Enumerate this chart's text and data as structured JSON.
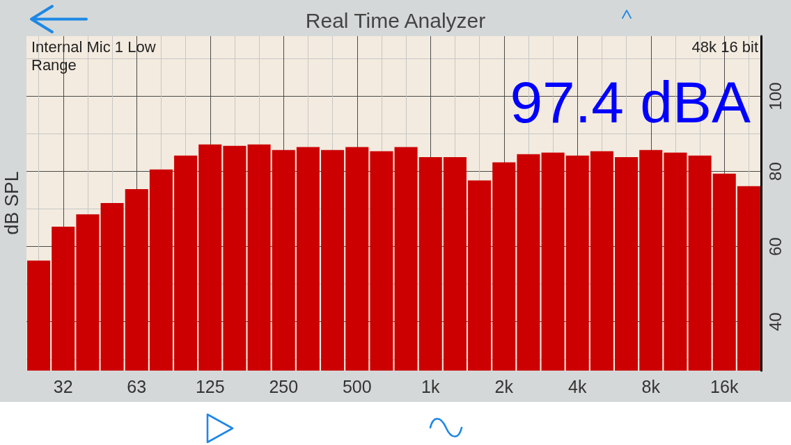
{
  "chart_data": {
    "type": "bar",
    "title": "Real Time Analyzer",
    "ylabel": "dB SPL",
    "annotations": [
      "Internal Mic 1 Low Range",
      "48k 16 bit",
      "97.4 dBA"
    ],
    "categories": [
      null,
      "32",
      null,
      null,
      "63",
      null,
      null,
      "125",
      null,
      null,
      "250",
      null,
      null,
      "500",
      null,
      null,
      "1k",
      null,
      null,
      "2k",
      null,
      null,
      "4k",
      null,
      null,
      "8k",
      null,
      null,
      "16k",
      null
    ],
    "values": [
      56.3,
      65.3,
      68.6,
      71.6,
      75.3,
      80.5,
      84.2,
      87.2,
      86.8,
      87.2,
      85.7,
      86.5,
      85.7,
      86.5,
      85.4,
      86.5,
      83.8,
      83.8,
      77.6,
      82.4,
      84.6,
      85.0,
      84.2,
      85.4,
      83.8,
      85.7,
      85.0,
      84.2,
      79.4,
      76.1
    ],
    "color": "#cc0000",
    "ylim": [
      27,
      116
    ],
    "yticks": [
      {
        "value": 30,
        "label": null
      },
      40,
      {
        "value": 50,
        "label": null
      },
      60,
      {
        "value": 70,
        "label": null
      },
      80,
      {
        "value": 90,
        "label": null
      },
      100,
      {
        "value": 110,
        "label": null
      }
    ],
    "grid": true
  }
}
